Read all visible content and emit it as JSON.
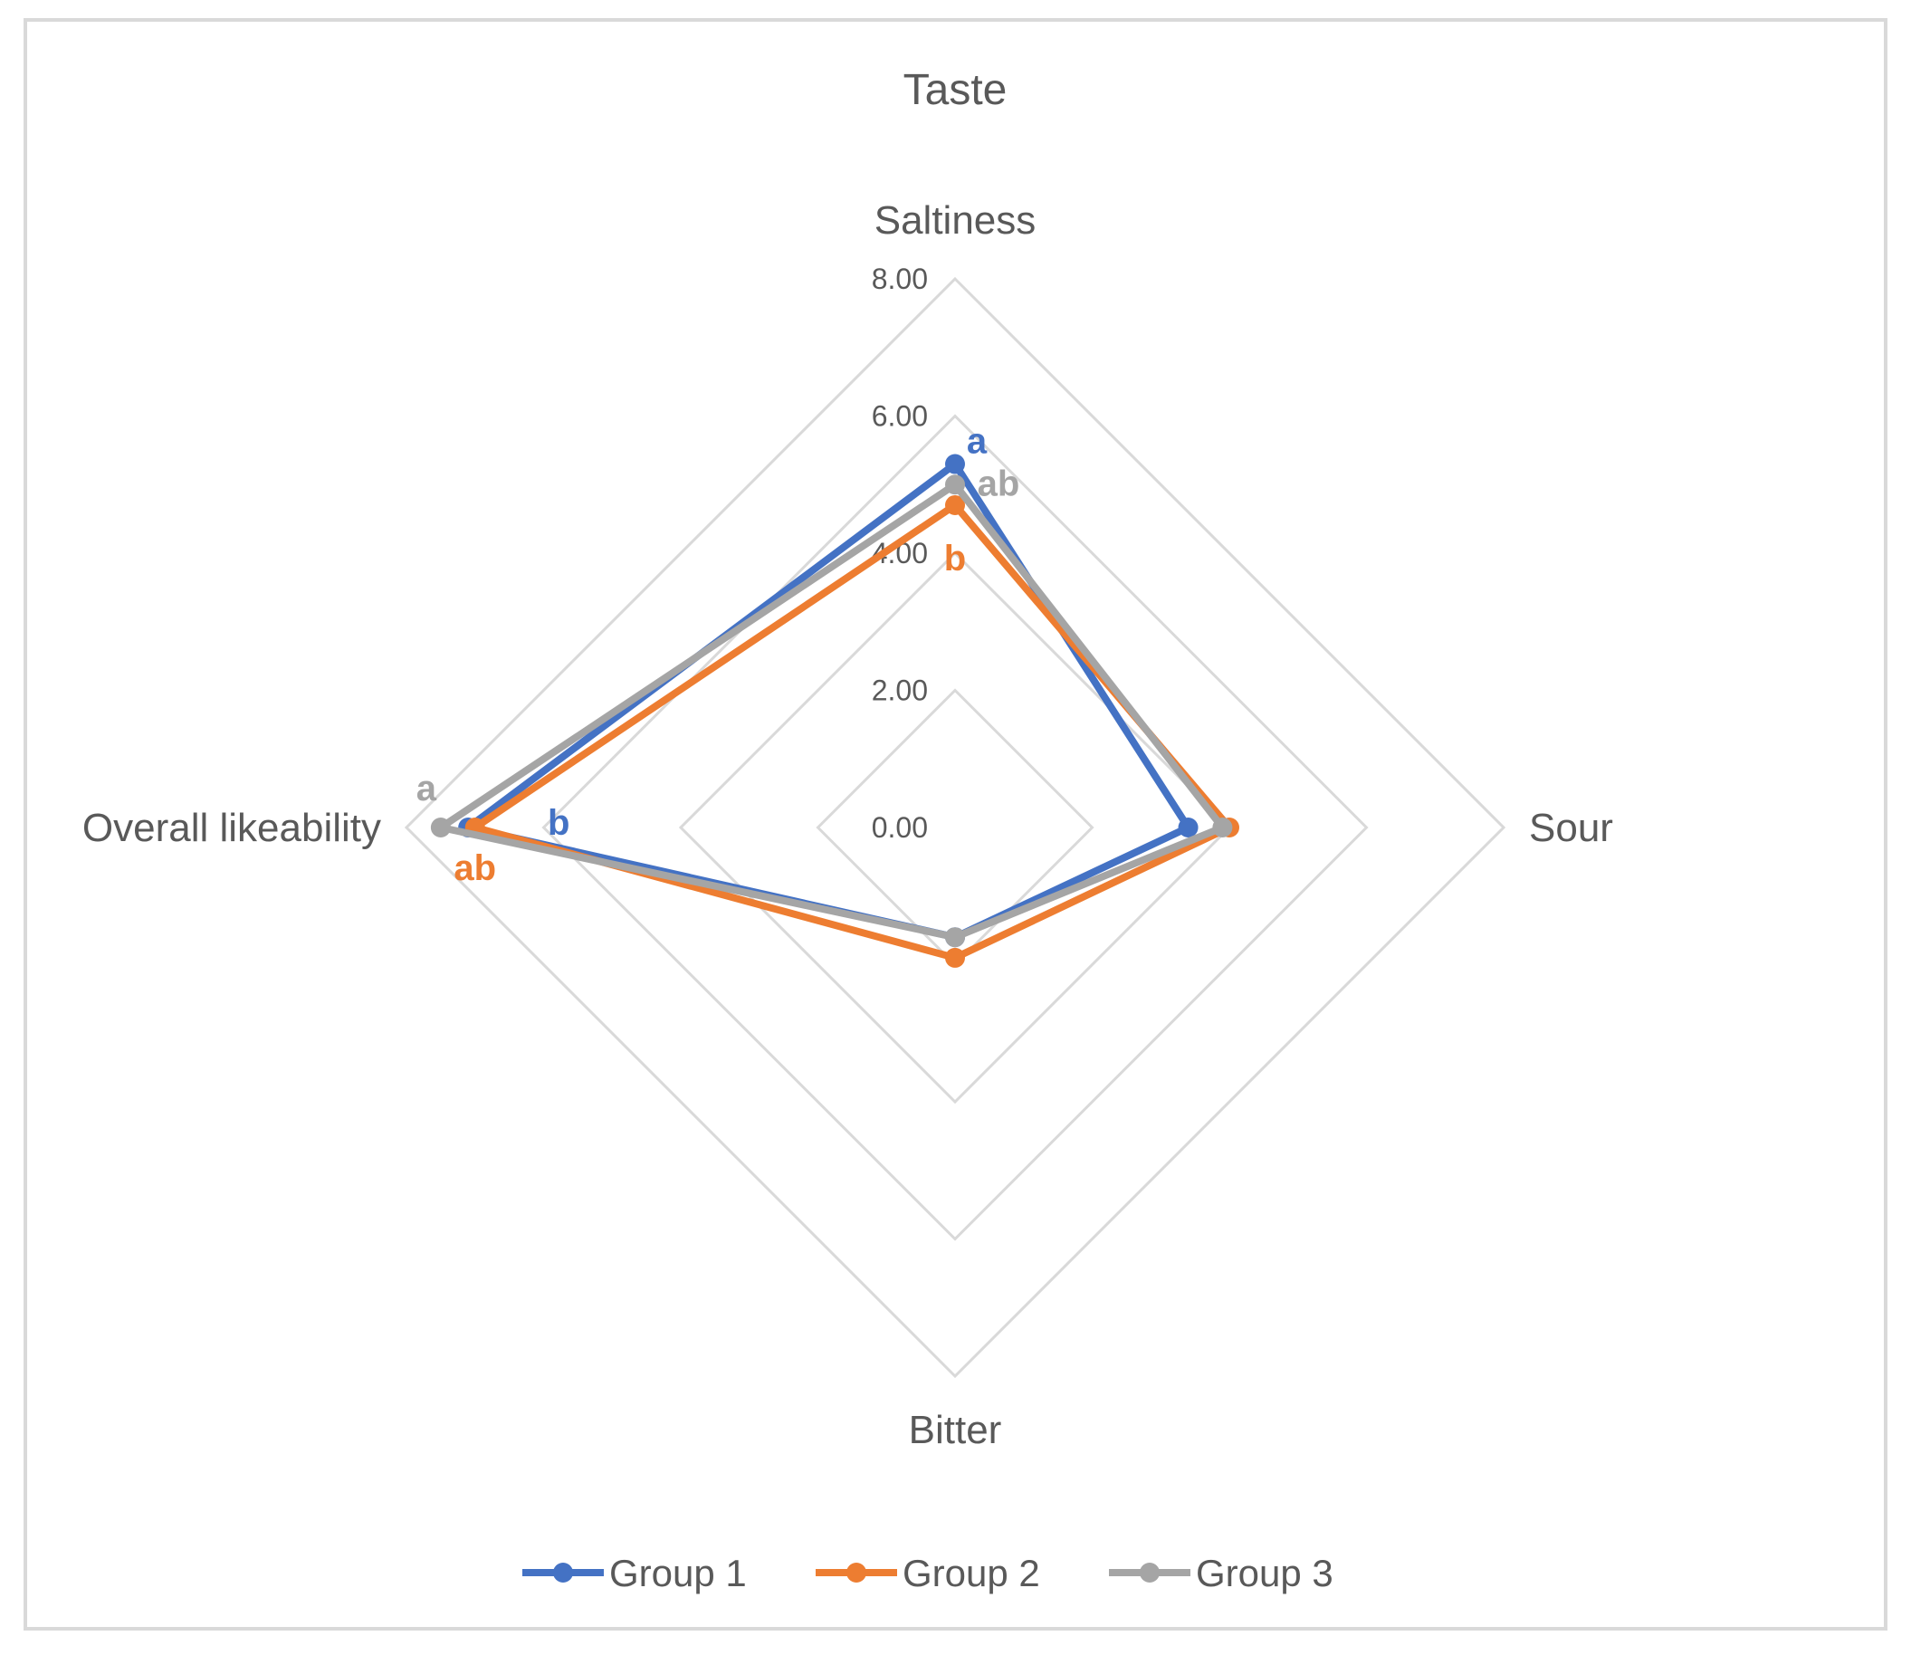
{
  "chart_data": {
    "type": "radar",
    "title": "Taste",
    "categories": [
      "Saltiness",
      "Sour",
      "Bitter",
      "Overall likeability"
    ],
    "tick_labels": [
      "0.00",
      "2.00",
      "4.00",
      "6.00",
      "8.00"
    ],
    "rlim": [
      0,
      8
    ],
    "grid": true,
    "legend_position": "bottom",
    "series": [
      {
        "name": "Group 1",
        "color": "#4472c4",
        "values": [
          5.3,
          3.4,
          1.6,
          7.1
        ],
        "annotations": [
          {
            "category": "Saltiness",
            "text": "a"
          },
          {
            "category": "Overall likeability",
            "text": "b"
          }
        ]
      },
      {
        "name": "Group 2",
        "color": "#ed7d31",
        "values": [
          4.7,
          4.0,
          1.9,
          7.0
        ],
        "annotations": [
          {
            "category": "Saltiness",
            "text": "b"
          },
          {
            "category": "Overall likeability",
            "text": "ab"
          }
        ]
      },
      {
        "name": "Group 3",
        "color": "#a5a5a5",
        "values": [
          5.0,
          3.9,
          1.6,
          7.5
        ],
        "annotations": [
          {
            "category": "Saltiness",
            "text": "ab"
          },
          {
            "category": "Overall likeability",
            "text": "a"
          }
        ]
      }
    ]
  }
}
